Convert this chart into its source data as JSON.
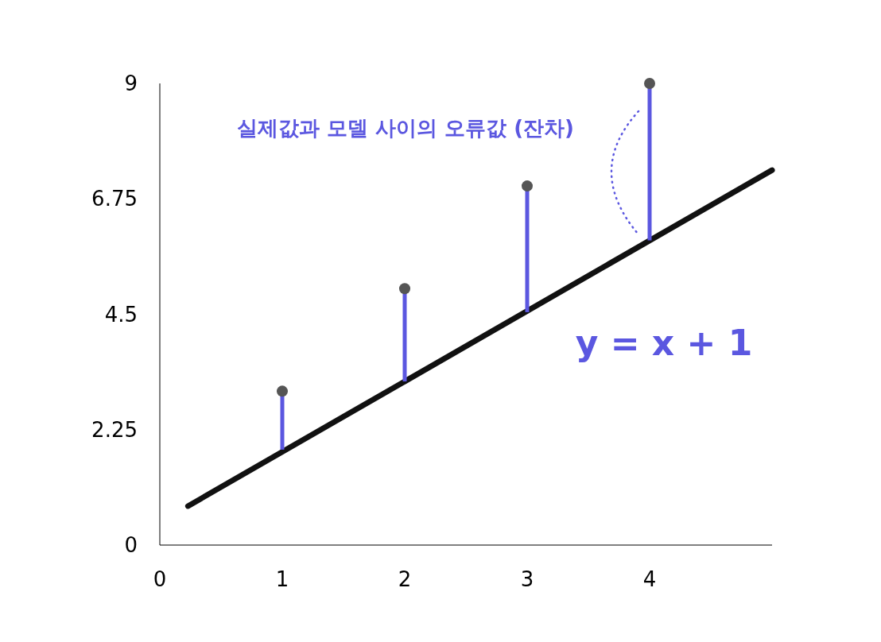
{
  "chart_data": {
    "type": "scatter",
    "annotations": [
      "실제값과 모델 사이의 오류값 (잔차)",
      "y = x + 1"
    ],
    "xlim": [
      0,
      5
    ],
    "ylim": [
      0,
      9
    ],
    "xticks": [
      0,
      1,
      2,
      3,
      4
    ],
    "yticks": [
      0,
      2.25,
      4.5,
      6.75,
      9
    ],
    "grid": false,
    "marker": "circle",
    "series": [
      {
        "type": "line",
        "color": "#111111",
        "x": [
          0.23,
          5.0
        ],
        "values": [
          0.76,
          7.31
        ],
        "marker": "none"
      },
      {
        "type": "bar",
        "color": "#5b57e0",
        "x": [
          1,
          2,
          3,
          4
        ],
        "base": [
          3,
          5,
          7,
          9
        ],
        "values": [
          -1.14,
          -1.81,
          -2.46,
          -3.06
        ]
      },
      {
        "color": "#555555",
        "x": [
          1,
          2,
          3,
          4
        ],
        "values": [
          3,
          5,
          7,
          9
        ]
      }
    ]
  }
}
